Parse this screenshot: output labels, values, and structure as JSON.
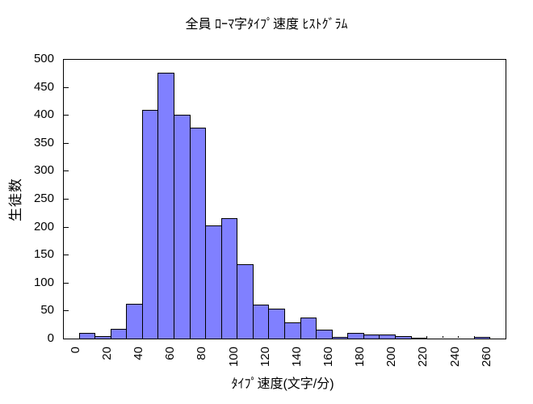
{
  "chart_data": {
    "type": "bar",
    "title": "全員 ﾛｰﾏ字ﾀｲﾌﾟ速度 ﾋｽﾄｸﾞﾗﾑ",
    "xlabel": "ﾀｲﾌﾟ速度(文字/分)",
    "ylabel": "生徒数",
    "bin_width": 10,
    "categories": [
      10,
      20,
      30,
      40,
      50,
      60,
      70,
      80,
      90,
      100,
      110,
      120,
      130,
      140,
      150,
      160,
      170,
      180,
      190,
      200,
      210,
      220,
      230,
      240,
      250,
      260
    ],
    "values": [
      10,
      4,
      17,
      62,
      409,
      476,
      400,
      377,
      203,
      216,
      133,
      60,
      53,
      29,
      37,
      16,
      3,
      10,
      7,
      7,
      4,
      1,
      0,
      0,
      0,
      3
    ],
    "xlim": [
      -5,
      275
    ],
    "ylim": [
      0,
      500
    ],
    "xticks": [
      0,
      20,
      40,
      60,
      80,
      100,
      120,
      140,
      160,
      180,
      200,
      220,
      240,
      260
    ],
    "yticks": [
      0,
      50,
      100,
      150,
      200,
      250,
      300,
      350,
      400,
      450,
      500
    ],
    "grid": false,
    "legend": null,
    "bar_fill": "#8080FF",
    "bar_border": "#000000",
    "background": "#FFFFFF",
    "text_color": "#000000"
  }
}
